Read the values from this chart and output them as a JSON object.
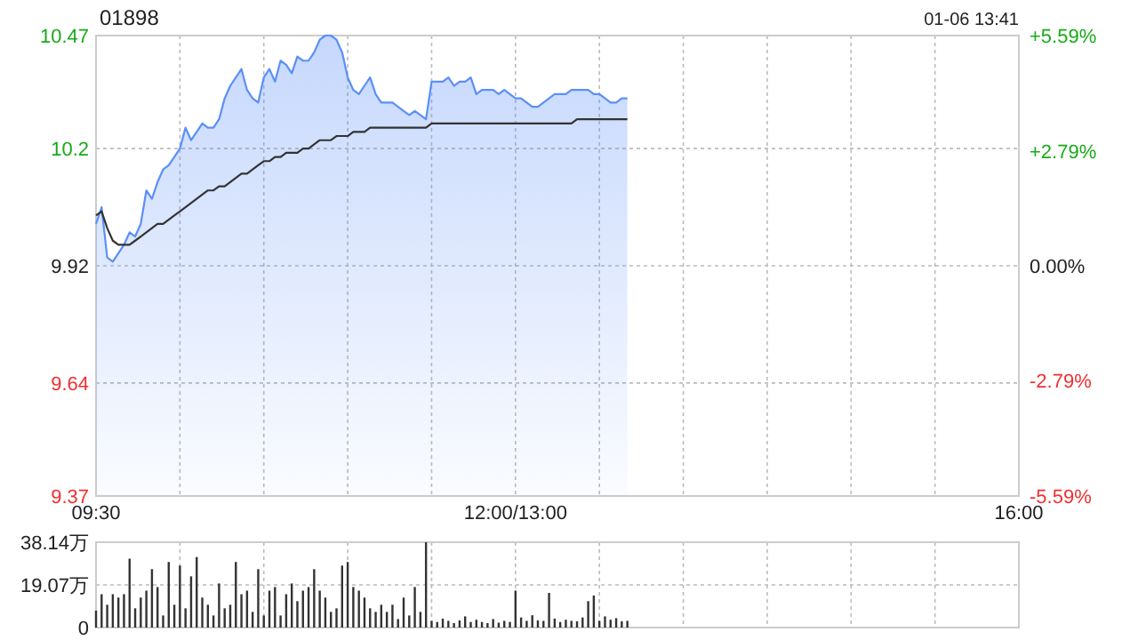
{
  "chart_data": [
    {
      "type": "area",
      "title": "01898",
      "annotations": [
        "01-06 13:41"
      ],
      "categories": [
        "09:30",
        null,
        null,
        null,
        null,
        null,
        null,
        null,
        null,
        null,
        null,
        null,
        null,
        null,
        null,
        null,
        null,
        null,
        null,
        null,
        null,
        null,
        null,
        null,
        null,
        null,
        null,
        null,
        null,
        null,
        null,
        null,
        null,
        null,
        null,
        null,
        null,
        null,
        null,
        null,
        null,
        null,
        null,
        null,
        null,
        null,
        null,
        null,
        null,
        null,
        null,
        null,
        null,
        null,
        null,
        null,
        null,
        null,
        null,
        null,
        null,
        null,
        null,
        null,
        null,
        null,
        null,
        null,
        null,
        null,
        null,
        null,
        null,
        null,
        null,
        "12:00/13:00",
        null,
        null,
        null,
        null,
        null,
        null,
        null,
        null,
        null,
        null,
        null,
        null,
        null,
        null,
        null,
        null,
        null,
        null,
        null,
        null,
        null,
        null,
        null,
        null,
        null,
        null,
        null,
        null,
        null,
        null,
        null,
        null,
        null,
        null,
        null,
        null,
        null,
        null,
        null,
        null,
        null,
        null,
        null,
        null,
        null,
        null,
        null,
        null,
        null,
        null,
        null,
        null,
        null,
        null,
        null,
        null,
        null,
        null,
        null,
        null,
        null,
        null,
        null,
        null,
        null,
        null,
        null,
        null,
        null,
        null,
        null,
        null,
        null,
        null,
        null,
        null,
        null,
        null,
        null,
        null,
        null,
        null,
        null,
        null,
        null,
        null,
        null,
        null,
        null,
        "16:00"
      ],
      "ylim": [
        9.37,
        10.47
      ],
      "yticks": [
        9.37,
        9.64,
        9.92,
        10.2,
        10.47
      ],
      "y2lim": [
        -5.59,
        5.59
      ],
      "y2ticks": [
        {
          "value": -5.59,
          "label": "-5.59%"
        },
        {
          "value": -2.79,
          "label": "-2.79%"
        },
        {
          "value": 0,
          "label": "0.00%"
        },
        {
          "value": 2.79,
          "label": "+2.79%"
        },
        {
          "value": 5.59,
          "label": "+5.59%"
        }
      ],
      "grid": true,
      "series": [
        {
          "type": "area",
          "color": "#5b8ff9",
          "values": [
            10.02,
            10.06,
            9.94,
            9.93,
            9.95,
            9.97,
            10.0,
            9.99,
            10.02,
            10.1,
            10.08,
            10.12,
            10.15,
            10.16,
            10.18,
            10.2,
            10.25,
            10.22,
            10.24,
            10.26,
            10.25,
            10.25,
            10.27,
            10.32,
            10.35,
            10.37,
            10.39,
            10.34,
            10.32,
            10.31,
            10.37,
            10.39,
            10.36,
            10.41,
            10.4,
            10.38,
            10.42,
            10.41,
            10.41,
            10.43,
            10.46,
            10.47,
            10.47,
            10.46,
            10.43,
            10.37,
            10.34,
            10.33,
            10.35,
            10.37,
            10.33,
            10.31,
            10.31,
            10.31,
            10.3,
            10.29,
            10.28,
            10.29,
            10.28,
            10.27,
            10.36,
            10.36,
            10.36,
            10.37,
            10.35,
            10.36,
            10.36,
            10.37,
            10.33,
            10.34,
            10.34,
            10.34,
            10.33,
            10.34,
            10.33,
            10.32,
            10.32,
            10.31,
            10.3,
            10.3,
            10.31,
            10.32,
            10.33,
            10.33,
            10.33,
            10.34,
            10.34,
            10.34,
            10.34,
            10.33,
            10.33,
            10.32,
            10.31,
            10.31,
            10.32,
            10.32,
            null,
            null,
            null,
            null,
            null,
            null,
            null,
            null,
            null,
            null,
            null,
            null,
            null,
            null,
            null,
            null,
            null,
            null,
            null,
            null,
            null,
            null,
            null,
            null,
            null,
            null,
            null,
            null,
            null,
            null,
            null,
            null,
            null,
            null,
            null,
            null,
            null,
            null,
            null,
            null,
            null,
            null,
            null,
            null,
            null,
            null,
            null,
            null,
            null,
            null,
            null,
            null,
            null,
            null,
            null,
            null,
            null,
            null,
            null,
            null,
            null,
            null,
            null,
            null,
            null,
            null,
            null,
            null,
            null,
            null
          ]
        },
        {
          "type": "line",
          "color": "#333333",
          "values": [
            10.04,
            10.05,
            10.01,
            9.98,
            9.97,
            9.97,
            9.97,
            9.98,
            9.99,
            10.0,
            10.01,
            10.02,
            10.02,
            10.03,
            10.04,
            10.05,
            10.06,
            10.07,
            10.08,
            10.09,
            10.1,
            10.1,
            10.11,
            10.11,
            10.12,
            10.13,
            10.14,
            10.14,
            10.15,
            10.16,
            10.17,
            10.17,
            10.18,
            10.18,
            10.19,
            10.19,
            10.19,
            10.2,
            10.2,
            10.21,
            10.22,
            10.22,
            10.22,
            10.23,
            10.23,
            10.23,
            10.24,
            10.24,
            10.24,
            10.25,
            10.25,
            10.25,
            10.25,
            10.25,
            10.25,
            10.25,
            10.25,
            10.25,
            10.25,
            10.25,
            10.26,
            10.26,
            10.26,
            10.26,
            10.26,
            10.26,
            10.26,
            10.26,
            10.26,
            10.26,
            10.26,
            10.26,
            10.26,
            10.26,
            10.26,
            10.26,
            10.26,
            10.26,
            10.26,
            10.26,
            10.26,
            10.26,
            10.26,
            10.26,
            10.26,
            10.26,
            10.27,
            10.27,
            10.27,
            10.27,
            10.27,
            10.27,
            10.27,
            10.27,
            10.27,
            10.27,
            null,
            null,
            null,
            null,
            null,
            null,
            null,
            null,
            null,
            null,
            null,
            null,
            null,
            null,
            null,
            null,
            null,
            null,
            null,
            null,
            null,
            null,
            null,
            null,
            null,
            null,
            null,
            null,
            null,
            null,
            null,
            null,
            null,
            null,
            null,
            null,
            null,
            null,
            null,
            null,
            null,
            null,
            null,
            null,
            null,
            null,
            null,
            null,
            null,
            null,
            null,
            null,
            null,
            null,
            null,
            null,
            null,
            null,
            null,
            null,
            null,
            null,
            null,
            null,
            null,
            null,
            null,
            null,
            null,
            null
          ]
        }
      ]
    },
    {
      "type": "bar",
      "tick_labels": "y",
      "grid": true,
      "categories": [
        null,
        null,
        null,
        null,
        null,
        null,
        null,
        null,
        null,
        null,
        null,
        null,
        null,
        null,
        null,
        null,
        null,
        null,
        null,
        null,
        null,
        null,
        null,
        null,
        null,
        null,
        null,
        null,
        null,
        null,
        null,
        null,
        null,
        null,
        null,
        null,
        null,
        null,
        null,
        null,
        null,
        null,
        null,
        null,
        null,
        null,
        null,
        null,
        null,
        null,
        null,
        null,
        null,
        null,
        null,
        null,
        null,
        null,
        null,
        null,
        null,
        null,
        null,
        null,
        null,
        null,
        null,
        null,
        null,
        null,
        null,
        null,
        null,
        null,
        null,
        null,
        null,
        null,
        null,
        null,
        null,
        null,
        null,
        null,
        null,
        null,
        null,
        null,
        null,
        null,
        null,
        null,
        null,
        null,
        null,
        null,
        null,
        null,
        null,
        null,
        null,
        null,
        null,
        null,
        null,
        null,
        null,
        null,
        null,
        null,
        null,
        null,
        null,
        null,
        null,
        null,
        null,
        null,
        null,
        null,
        null,
        null,
        null,
        null,
        null,
        null,
        null,
        null,
        null,
        null,
        null,
        null,
        null,
        null,
        null,
        null,
        null,
        null,
        null,
        null,
        null,
        null,
        null,
        null,
        null,
        null,
        null,
        null,
        null,
        null,
        null,
        null,
        null,
        null,
        null,
        null,
        null,
        null,
        null,
        null,
        null,
        null,
        null,
        null,
        null,
        null
      ],
      "ylim": [
        0,
        38.14
      ],
      "yticks": [
        0,
        {
          "value": 19.07,
          "label": "19.07万"
        },
        {
          "value": 38.14,
          "label": "38.14万"
        }
      ],
      "series": [
        {
          "color": "#333333",
          "values": [
            7.6,
            14.9,
            10.2,
            14.9,
            13.4,
            14.9,
            30.8,
            8.6,
            13.4,
            16.5,
            26.1,
            18.1,
            5.4,
            29.3,
            10.2,
            27.7,
            8.6,
            22.9,
            31.5,
            13.4,
            10.2,
            5.4,
            19.7,
            8.6,
            10.2,
            29.3,
            14.9,
            16.5,
            7,
            26.1,
            5.4,
            16.5,
            18.1,
            5.4,
            14.9,
            19.7,
            11.8,
            16.5,
            18.1,
            26.1,
            16.5,
            13.4,
            7,
            8.6,
            27.7,
            29.3,
            18.1,
            16.5,
            13.4,
            8.6,
            7,
            10.2,
            7,
            10.2,
            3.8,
            13.4,
            5.4,
            18.1,
            7,
            38.1,
            3,
            2.5,
            4,
            3,
            2,
            3.2,
            5,
            2.5,
            3.5,
            2.5,
            2,
            3.8,
            2.2,
            3,
            2.5,
            16.5,
            4.5,
            3,
            5.5,
            3.2,
            3,
            15.5,
            4,
            2.5,
            3.5,
            3,
            2.8,
            4.5,
            11.8,
            14.3,
            3,
            5,
            3.5,
            4.2,
            2.8,
            3,
            null,
            null,
            null,
            null,
            null,
            null,
            null,
            null,
            null,
            null,
            null,
            null,
            null,
            null,
            null,
            null,
            null,
            null,
            null,
            null,
            null,
            null,
            null,
            null,
            null,
            null,
            null,
            null,
            null,
            null,
            null,
            null,
            null,
            null,
            null,
            null,
            null,
            null,
            null,
            null,
            null,
            null,
            null,
            null,
            null,
            null,
            null,
            null,
            null,
            null,
            null,
            null,
            null,
            null,
            null,
            null,
            null,
            null,
            null,
            null,
            null,
            null,
            null,
            null,
            null,
            null,
            null,
            null,
            null,
            null
          ]
        }
      ]
    }
  ]
}
